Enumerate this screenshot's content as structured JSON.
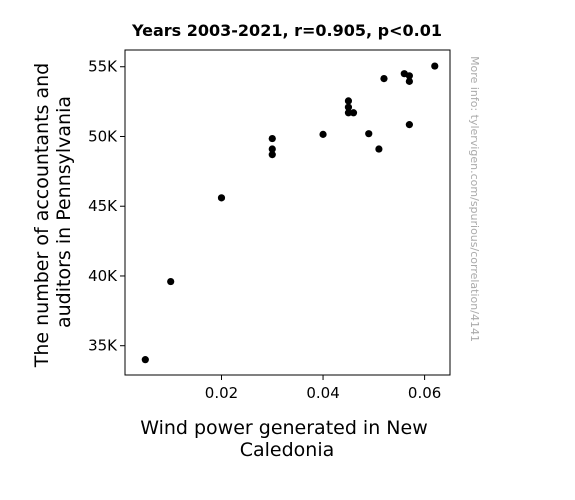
{
  "chart_data": {
    "type": "scatter",
    "title": "Years 2003-2021, r=0.905, p<0.01",
    "xlabel": [
      "Wind power generated in New",
      "Caledonia"
    ],
    "ylabel": [
      "The number of accountants and",
      "auditors in Pennsylvania"
    ],
    "watermark": "More info: tylervigen.com/spurious/correlation/4141",
    "xlim": [
      0.001,
      0.065
    ],
    "ylim": [
      32900,
      56200
    ],
    "x_ticks": [
      {
        "value": 0.02,
        "label": "0.02"
      },
      {
        "value": 0.04,
        "label": "0.04"
      },
      {
        "value": 0.06,
        "label": "0.06"
      }
    ],
    "y_ticks": [
      {
        "value": 35000,
        "label": "35K"
      },
      {
        "value": 40000,
        "label": "40K"
      },
      {
        "value": 45000,
        "label": "45K"
      },
      {
        "value": 50000,
        "label": "50K"
      },
      {
        "value": 55000,
        "label": "55K"
      }
    ],
    "grid": false,
    "marker_color": "#000000",
    "points": [
      {
        "x": 0.005,
        "y": 34000
      },
      {
        "x": 0.01,
        "y": 39600
      },
      {
        "x": 0.02,
        "y": 45600
      },
      {
        "x": 0.03,
        "y": 48700
      },
      {
        "x": 0.03,
        "y": 49100
      },
      {
        "x": 0.03,
        "y": 49850
      },
      {
        "x": 0.04,
        "y": 50150
      },
      {
        "x": 0.045,
        "y": 51700
      },
      {
        "x": 0.045,
        "y": 52100
      },
      {
        "x": 0.045,
        "y": 52550
      },
      {
        "x": 0.046,
        "y": 51700
      },
      {
        "x": 0.049,
        "y": 50200
      },
      {
        "x": 0.051,
        "y": 49100
      },
      {
        "x": 0.052,
        "y": 54150
      },
      {
        "x": 0.056,
        "y": 54500
      },
      {
        "x": 0.057,
        "y": 54350
      },
      {
        "x": 0.057,
        "y": 53950
      },
      {
        "x": 0.057,
        "y": 50850
      },
      {
        "x": 0.062,
        "y": 55050
      }
    ]
  }
}
